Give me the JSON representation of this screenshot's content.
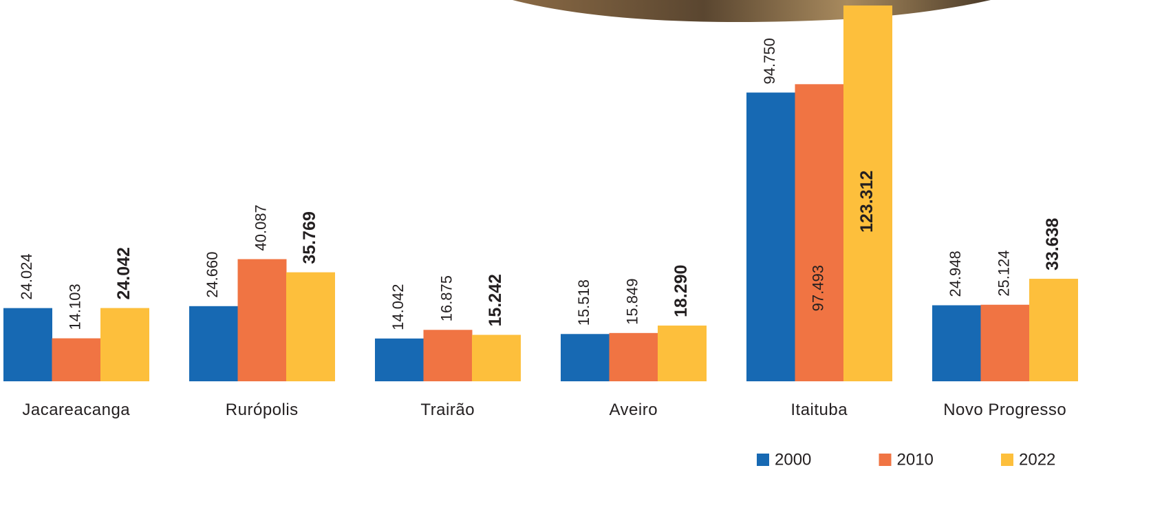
{
  "chart_data": {
    "type": "bar",
    "categories": [
      "Jacareacanga",
      "Rurópolis",
      "Trairão",
      "Aveiro",
      "Itaituba",
      "Novo Progresso"
    ],
    "series": [
      {
        "name": "2000",
        "color": "#1769b3",
        "values": [
          24024,
          24660,
          14042,
          15518,
          94750,
          24948
        ],
        "value_labels": [
          "24.024",
          "24.660",
          "14.042",
          "15.518",
          "94.750",
          "24.948"
        ]
      },
      {
        "name": "2010",
        "color": "#f07443",
        "values": [
          14103,
          40087,
          16875,
          15849,
          97493,
          25124
        ],
        "value_labels": [
          "14.103",
          "40.087",
          "16.875",
          "15.849",
          "97.493",
          "25.124"
        ]
      },
      {
        "name": "2022",
        "color": "#fdbf3c",
        "values": [
          24042,
          35769,
          15242,
          18290,
          123312,
          33638
        ],
        "value_labels": [
          "24.042",
          "35.769",
          "15.242",
          "18.290",
          "123.312",
          "33.638"
        ]
      }
    ]
  }
}
